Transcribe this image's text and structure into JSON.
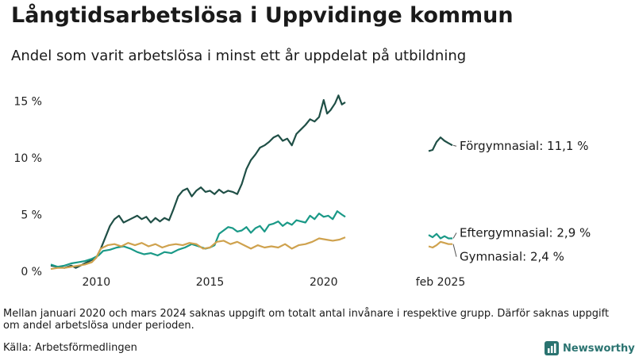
{
  "title": "Långtidsarbetslösa i Uppvidinge kommun",
  "subtitle": "Andel som varit arbetslösa i minst ett år uppdelat på utbildning",
  "note": "Mellan januari 2020 och mars 2024 saknas uppgift om totalt antal invånare i respektive grupp. Därför saknas uppgift om andel arbetslösa under perioden.",
  "source": "Källa: Arbetsförmedlingen",
  "brand": {
    "name": "Newsworthy",
    "color": "#2a7370"
  },
  "chart_data": {
    "type": "line",
    "title": "Långtidsarbetslösa i Uppvidinge kommun",
    "subtitle": "Andel som varit arbetslösa i minst ett år uppdelat på utbildning",
    "y_ticks": [
      {
        "value": 0,
        "label": "0 %"
      },
      {
        "value": 5,
        "label": "5 %"
      },
      {
        "value": 10,
        "label": "10 %"
      },
      {
        "value": 15,
        "label": "15 %"
      }
    ],
    "x_ticks": [
      {
        "value": 2010,
        "label": "2010"
      },
      {
        "value": 2015,
        "label": "2015"
      },
      {
        "value": 2020,
        "label": "2020"
      }
    ],
    "x_extra_label": "feb 2025",
    "ylim": [
      0,
      16.5
    ],
    "xlim": [
      2008.0,
      2021.3
    ],
    "grid": false,
    "series": [
      {
        "name": "Förgymnasial",
        "color": "#1f4f46",
        "end_label": "Förgymnasial: 11,1 %",
        "points": [
          [
            2008.0,
            0.5
          ],
          [
            2008.3,
            0.4
          ],
          [
            2008.6,
            0.3
          ],
          [
            2008.9,
            0.5
          ],
          [
            2009.1,
            0.3
          ],
          [
            2009.4,
            0.6
          ],
          [
            2009.7,
            0.9
          ],
          [
            2010.0,
            1.2
          ],
          [
            2010.2,
            2.0
          ],
          [
            2010.4,
            3.0
          ],
          [
            2010.6,
            4.0
          ],
          [
            2010.8,
            4.6
          ],
          [
            2011.0,
            4.9
          ],
          [
            2011.2,
            4.3
          ],
          [
            2011.5,
            4.6
          ],
          [
            2011.8,
            4.9
          ],
          [
            2012.0,
            4.6
          ],
          [
            2012.2,
            4.8
          ],
          [
            2012.4,
            4.3
          ],
          [
            2012.6,
            4.7
          ],
          [
            2012.8,
            4.4
          ],
          [
            2013.0,
            4.7
          ],
          [
            2013.2,
            4.5
          ],
          [
            2013.4,
            5.5
          ],
          [
            2013.6,
            6.6
          ],
          [
            2013.8,
            7.1
          ],
          [
            2014.0,
            7.3
          ],
          [
            2014.2,
            6.6
          ],
          [
            2014.4,
            7.1
          ],
          [
            2014.6,
            7.4
          ],
          [
            2014.8,
            7.0
          ],
          [
            2015.0,
            7.1
          ],
          [
            2015.2,
            6.8
          ],
          [
            2015.4,
            7.2
          ],
          [
            2015.6,
            6.9
          ],
          [
            2015.8,
            7.1
          ],
          [
            2016.0,
            7.0
          ],
          [
            2016.2,
            6.8
          ],
          [
            2016.4,
            7.7
          ],
          [
            2016.6,
            9.0
          ],
          [
            2016.8,
            9.8
          ],
          [
            2017.0,
            10.3
          ],
          [
            2017.2,
            10.9
          ],
          [
            2017.4,
            11.1
          ],
          [
            2017.6,
            11.4
          ],
          [
            2017.8,
            11.8
          ],
          [
            2018.0,
            12.0
          ],
          [
            2018.2,
            11.5
          ],
          [
            2018.4,
            11.7
          ],
          [
            2018.6,
            11.1
          ],
          [
            2018.8,
            12.1
          ],
          [
            2019.0,
            12.5
          ],
          [
            2019.2,
            12.9
          ],
          [
            2019.4,
            13.4
          ],
          [
            2019.6,
            13.2
          ],
          [
            2019.8,
            13.6
          ],
          [
            2020.0,
            15.1
          ],
          [
            2020.15,
            13.9
          ],
          [
            2020.3,
            14.2
          ],
          [
            2020.5,
            14.8
          ],
          [
            2020.65,
            15.5
          ],
          [
            2020.8,
            14.7
          ],
          [
            2020.95,
            14.9
          ]
        ],
        "recent_points": [
          [
            0,
            10.6
          ],
          [
            1,
            10.7
          ],
          [
            2,
            11.4
          ],
          [
            3,
            11.8
          ],
          [
            4,
            11.5
          ],
          [
            5,
            11.3
          ],
          [
            6,
            11.1
          ]
        ]
      },
      {
        "name": "Eftergymnasial",
        "color": "#1a9987",
        "end_label": "Eftergymnasial:  2,9 %",
        "points": [
          [
            2008.0,
            0.6
          ],
          [
            2008.3,
            0.4
          ],
          [
            2008.6,
            0.5
          ],
          [
            2008.9,
            0.7
          ],
          [
            2009.2,
            0.8
          ],
          [
            2009.5,
            0.9
          ],
          [
            2009.8,
            1.1
          ],
          [
            2010.1,
            1.4
          ],
          [
            2010.3,
            1.8
          ],
          [
            2010.6,
            1.9
          ],
          [
            2010.9,
            2.1
          ],
          [
            2011.2,
            2.2
          ],
          [
            2011.5,
            2.0
          ],
          [
            2011.8,
            1.7
          ],
          [
            2012.1,
            1.5
          ],
          [
            2012.4,
            1.6
          ],
          [
            2012.7,
            1.4
          ],
          [
            2013.0,
            1.7
          ],
          [
            2013.3,
            1.6
          ],
          [
            2013.6,
            1.9
          ],
          [
            2013.9,
            2.1
          ],
          [
            2014.2,
            2.4
          ],
          [
            2014.5,
            2.2
          ],
          [
            2014.8,
            2.0
          ],
          [
            2015.0,
            2.1
          ],
          [
            2015.2,
            2.3
          ],
          [
            2015.4,
            3.3
          ],
          [
            2015.6,
            3.6
          ],
          [
            2015.8,
            3.9
          ],
          [
            2016.0,
            3.8
          ],
          [
            2016.2,
            3.5
          ],
          [
            2016.4,
            3.6
          ],
          [
            2016.6,
            3.9
          ],
          [
            2016.8,
            3.4
          ],
          [
            2017.0,
            3.8
          ],
          [
            2017.2,
            4.0
          ],
          [
            2017.4,
            3.5
          ],
          [
            2017.6,
            4.1
          ],
          [
            2017.8,
            4.2
          ],
          [
            2018.0,
            4.4
          ],
          [
            2018.2,
            4.0
          ],
          [
            2018.4,
            4.3
          ],
          [
            2018.6,
            4.1
          ],
          [
            2018.8,
            4.5
          ],
          [
            2019.0,
            4.4
          ],
          [
            2019.2,
            4.3
          ],
          [
            2019.4,
            4.9
          ],
          [
            2019.6,
            4.6
          ],
          [
            2019.8,
            5.1
          ],
          [
            2020.0,
            4.8
          ],
          [
            2020.2,
            4.9
          ],
          [
            2020.4,
            4.6
          ],
          [
            2020.6,
            5.3
          ],
          [
            2020.8,
            5.0
          ],
          [
            2020.95,
            4.8
          ]
        ],
        "recent_points": [
          [
            0,
            3.2
          ],
          [
            1,
            3.0
          ],
          [
            2,
            3.3
          ],
          [
            3,
            2.9
          ],
          [
            4,
            3.1
          ],
          [
            5,
            2.9
          ],
          [
            6,
            2.9
          ]
        ]
      },
      {
        "name": "Gymnasial",
        "color": "#cfa24e",
        "end_label": "Gymnasial:  2,4 %",
        "points": [
          [
            2008.0,
            0.2
          ],
          [
            2008.3,
            0.3
          ],
          [
            2008.6,
            0.3
          ],
          [
            2008.9,
            0.4
          ],
          [
            2009.2,
            0.5
          ],
          [
            2009.5,
            0.6
          ],
          [
            2009.8,
            0.8
          ],
          [
            2010.0,
            1.2
          ],
          [
            2010.2,
            2.0
          ],
          [
            2010.5,
            2.3
          ],
          [
            2010.8,
            2.4
          ],
          [
            2011.1,
            2.2
          ],
          [
            2011.4,
            2.5
          ],
          [
            2011.7,
            2.3
          ],
          [
            2012.0,
            2.5
          ],
          [
            2012.3,
            2.2
          ],
          [
            2012.6,
            2.4
          ],
          [
            2012.9,
            2.1
          ],
          [
            2013.2,
            2.3
          ],
          [
            2013.5,
            2.4
          ],
          [
            2013.8,
            2.3
          ],
          [
            2014.1,
            2.5
          ],
          [
            2014.4,
            2.4
          ],
          [
            2014.7,
            2.0
          ],
          [
            2015.0,
            2.1
          ],
          [
            2015.3,
            2.6
          ],
          [
            2015.6,
            2.7
          ],
          [
            2015.9,
            2.4
          ],
          [
            2016.2,
            2.6
          ],
          [
            2016.5,
            2.3
          ],
          [
            2016.8,
            2.0
          ],
          [
            2017.1,
            2.3
          ],
          [
            2017.4,
            2.1
          ],
          [
            2017.7,
            2.2
          ],
          [
            2018.0,
            2.1
          ],
          [
            2018.3,
            2.4
          ],
          [
            2018.6,
            2.0
          ],
          [
            2018.9,
            2.3
          ],
          [
            2019.2,
            2.4
          ],
          [
            2019.5,
            2.6
          ],
          [
            2019.8,
            2.9
          ],
          [
            2020.1,
            2.8
          ],
          [
            2020.4,
            2.7
          ],
          [
            2020.7,
            2.8
          ],
          [
            2020.95,
            3.0
          ]
        ],
        "recent_points": [
          [
            0,
            2.2
          ],
          [
            1,
            2.1
          ],
          [
            2,
            2.3
          ],
          [
            3,
            2.6
          ],
          [
            4,
            2.5
          ],
          [
            5,
            2.4
          ],
          [
            6,
            2.4
          ]
        ]
      }
    ]
  }
}
